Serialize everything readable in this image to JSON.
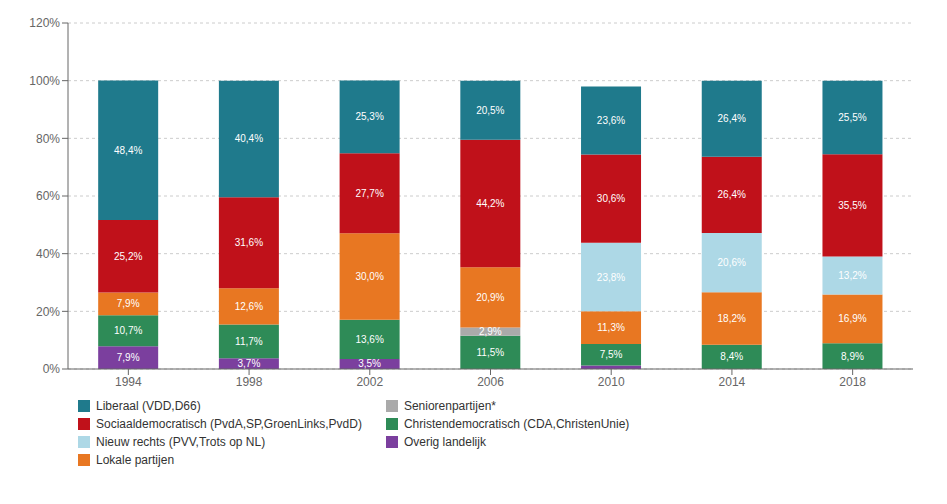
{
  "chart_data": {
    "type": "bar",
    "stacked": true,
    "categories": [
      "1994",
      "1998",
      "2002",
      "2006",
      "2010",
      "2014",
      "2018"
    ],
    "series": [
      {
        "name": "Overig landelijk",
        "color": "#7B3F9E",
        "values": [
          7.9,
          3.7,
          3.5,
          0.0,
          1.2,
          0.0,
          0.0
        ],
        "value_labels": [
          "7,9%",
          "3,7%",
          "3,5%",
          null,
          null,
          null,
          null
        ]
      },
      {
        "name": "Christendemocratisch (CDA,ChristenUnie)",
        "color": "#2E8B57",
        "values": [
          10.7,
          11.7,
          13.6,
          11.5,
          7.5,
          8.4,
          8.9
        ],
        "value_labels": [
          "10,7%",
          "11,7%",
          "13,6%",
          "11,5%",
          "7,5%",
          "8,4%",
          "8,9%"
        ]
      },
      {
        "name": "Seniorenpartijen*",
        "color": "#AAAAAA",
        "values": [
          0.0,
          0.0,
          0.0,
          2.9,
          0.0,
          0.0,
          0.0
        ],
        "value_labels": [
          null,
          null,
          null,
          "2,9%",
          null,
          null,
          null
        ]
      },
      {
        "name": "Lokale partijen",
        "color": "#E87722",
        "values": [
          7.9,
          12.6,
          30.0,
          20.9,
          11.3,
          18.2,
          16.9
        ],
        "value_labels": [
          "7,9%",
          "12,6%",
          "30,0%",
          "20,9%",
          "11,3%",
          "18,2%",
          "16,9%"
        ]
      },
      {
        "name": "Nieuw rechts (PVV,Trots op NL)",
        "color": "#ADD8E6",
        "values": [
          0.0,
          0.0,
          0.0,
          0.0,
          23.8,
          20.6,
          13.2
        ],
        "value_labels": [
          null,
          null,
          null,
          null,
          "23,8%",
          "20,6%",
          "13,2%"
        ]
      },
      {
        "name": "Sociaaldemocratisch (PvdA,SP,GroenLinks,PvdD)",
        "color": "#C0111A",
        "values": [
          25.2,
          31.6,
          27.7,
          44.2,
          30.6,
          26.4,
          35.5
        ],
        "value_labels": [
          "25,2%",
          "31,6%",
          "27,7%",
          "44,2%",
          "30,6%",
          "26,4%",
          "35,5%"
        ]
      },
      {
        "name": "Liberaal (VDD,D66)",
        "color": "#1F7A8C",
        "values": [
          48.4,
          40.4,
          25.3,
          20.5,
          23.6,
          26.4,
          25.5
        ],
        "value_labels": [
          "48,4%",
          "40,4%",
          "25,3%",
          "20,5%",
          "23,6%",
          "26,4%",
          "25,5%"
        ]
      }
    ],
    "ylim": [
      0,
      120
    ],
    "yticks": [
      {
        "value": 0,
        "label": "0%"
      },
      {
        "value": 20,
        "label": "20%"
      },
      {
        "value": 40,
        "label": "40%"
      },
      {
        "value": 60,
        "label": "60%"
      },
      {
        "value": 80,
        "label": "80%"
      },
      {
        "value": 100,
        "label": "100%"
      },
      {
        "value": 120,
        "label": "120%"
      }
    ],
    "grid": true,
    "legend": "lower left",
    "data_labels": true
  }
}
